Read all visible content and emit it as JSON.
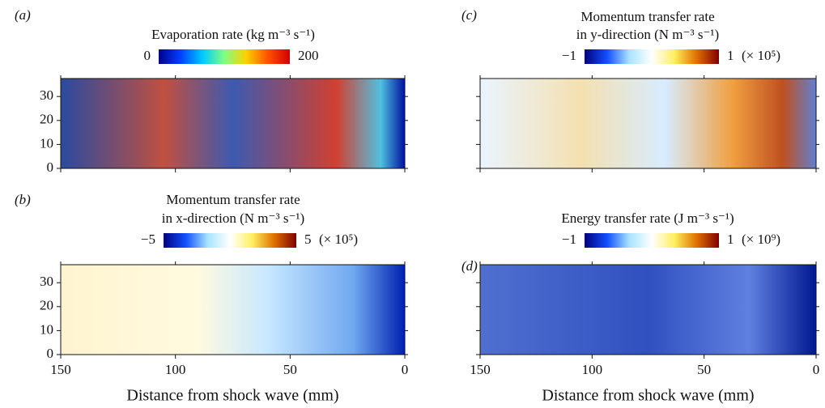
{
  "chart_data": [
    {
      "type": "heatmap",
      "panel_label": "(a)",
      "title": [
        "Evaporation rate (kg m⁻³ s⁻¹)"
      ],
      "colormap": [
        "#00008f",
        "#0040ff",
        "#00c8ff",
        "#80ff80",
        "#ffd000",
        "#ff5000",
        "#d00000"
      ],
      "clim": [
        0,
        200
      ],
      "cticks": [
        0,
        200
      ],
      "xlim": [
        150,
        0
      ],
      "ylim": [
        0,
        37.5
      ],
      "xticks": [
        150,
        100,
        50,
        0
      ],
      "yticks": [
        0,
        10,
        20,
        30
      ],
      "show_xticklabels": false,
      "show_yticklabels": true
    },
    {
      "type": "heatmap",
      "panel_label": "(c)",
      "title": [
        "Momentum transfer rate",
        "in y-direction (N m⁻³ s⁻¹)"
      ],
      "colormap": [
        "#00007f",
        "#1050ff",
        "#a8e4ff",
        "#ffffff",
        "#fff060",
        "#e07000",
        "#800000"
      ],
      "clim": [
        -1,
        1
      ],
      "cticks": [
        {
          "value": -1,
          "label": "−1"
        },
        1
      ],
      "colorbar_multiplier": "(× 10⁵)",
      "xlim": [
        150,
        0
      ],
      "ylim": [
        0,
        37.5
      ],
      "xticks": [
        150,
        100,
        50,
        0
      ],
      "yticks": [
        0,
        10,
        20,
        30
      ],
      "show_xticklabels": false,
      "show_yticklabels": false
    },
    {
      "type": "heatmap",
      "panel_label": "(b)",
      "title": [
        "Momentum transfer rate",
        "in x-direction (N m⁻³ s⁻¹)"
      ],
      "colormap": [
        "#00007f",
        "#1050ff",
        "#a8e4ff",
        "#ffffff",
        "#fff060",
        "#e07000",
        "#800000"
      ],
      "clim": [
        -5,
        5
      ],
      "cticks": [
        {
          "value": -5,
          "label": "−5"
        },
        5
      ],
      "colorbar_multiplier": "(× 10⁵)",
      "xlim": [
        150,
        0
      ],
      "ylim": [
        0,
        37.5
      ],
      "xticks": [
        150,
        100,
        50,
        0
      ],
      "yticks": [
        0,
        10,
        20,
        30
      ],
      "show_xticklabels": true,
      "show_yticklabels": true,
      "xlabel": "Distance from shock wave (mm)"
    },
    {
      "type": "heatmap",
      "panel_label": "(d)",
      "title": [
        "Energy transfer rate (J m⁻³ s⁻¹)"
      ],
      "colormap": [
        "#00007f",
        "#1050ff",
        "#a8e4ff",
        "#ffffff",
        "#fff060",
        "#e07000",
        "#800000"
      ],
      "clim": [
        -1,
        1
      ],
      "cticks": [
        {
          "value": -1,
          "label": "−1"
        },
        1
      ],
      "colorbar_multiplier": "(× 10⁹)",
      "xlim": [
        150,
        0
      ],
      "ylim": [
        0,
        37.5
      ],
      "xticks": [
        150,
        100,
        50,
        0
      ],
      "yticks": [
        0,
        10,
        20,
        30
      ],
      "show_xticklabels": true,
      "show_yticklabels": false,
      "xlabel": "Distance from shock wave (mm)"
    }
  ]
}
